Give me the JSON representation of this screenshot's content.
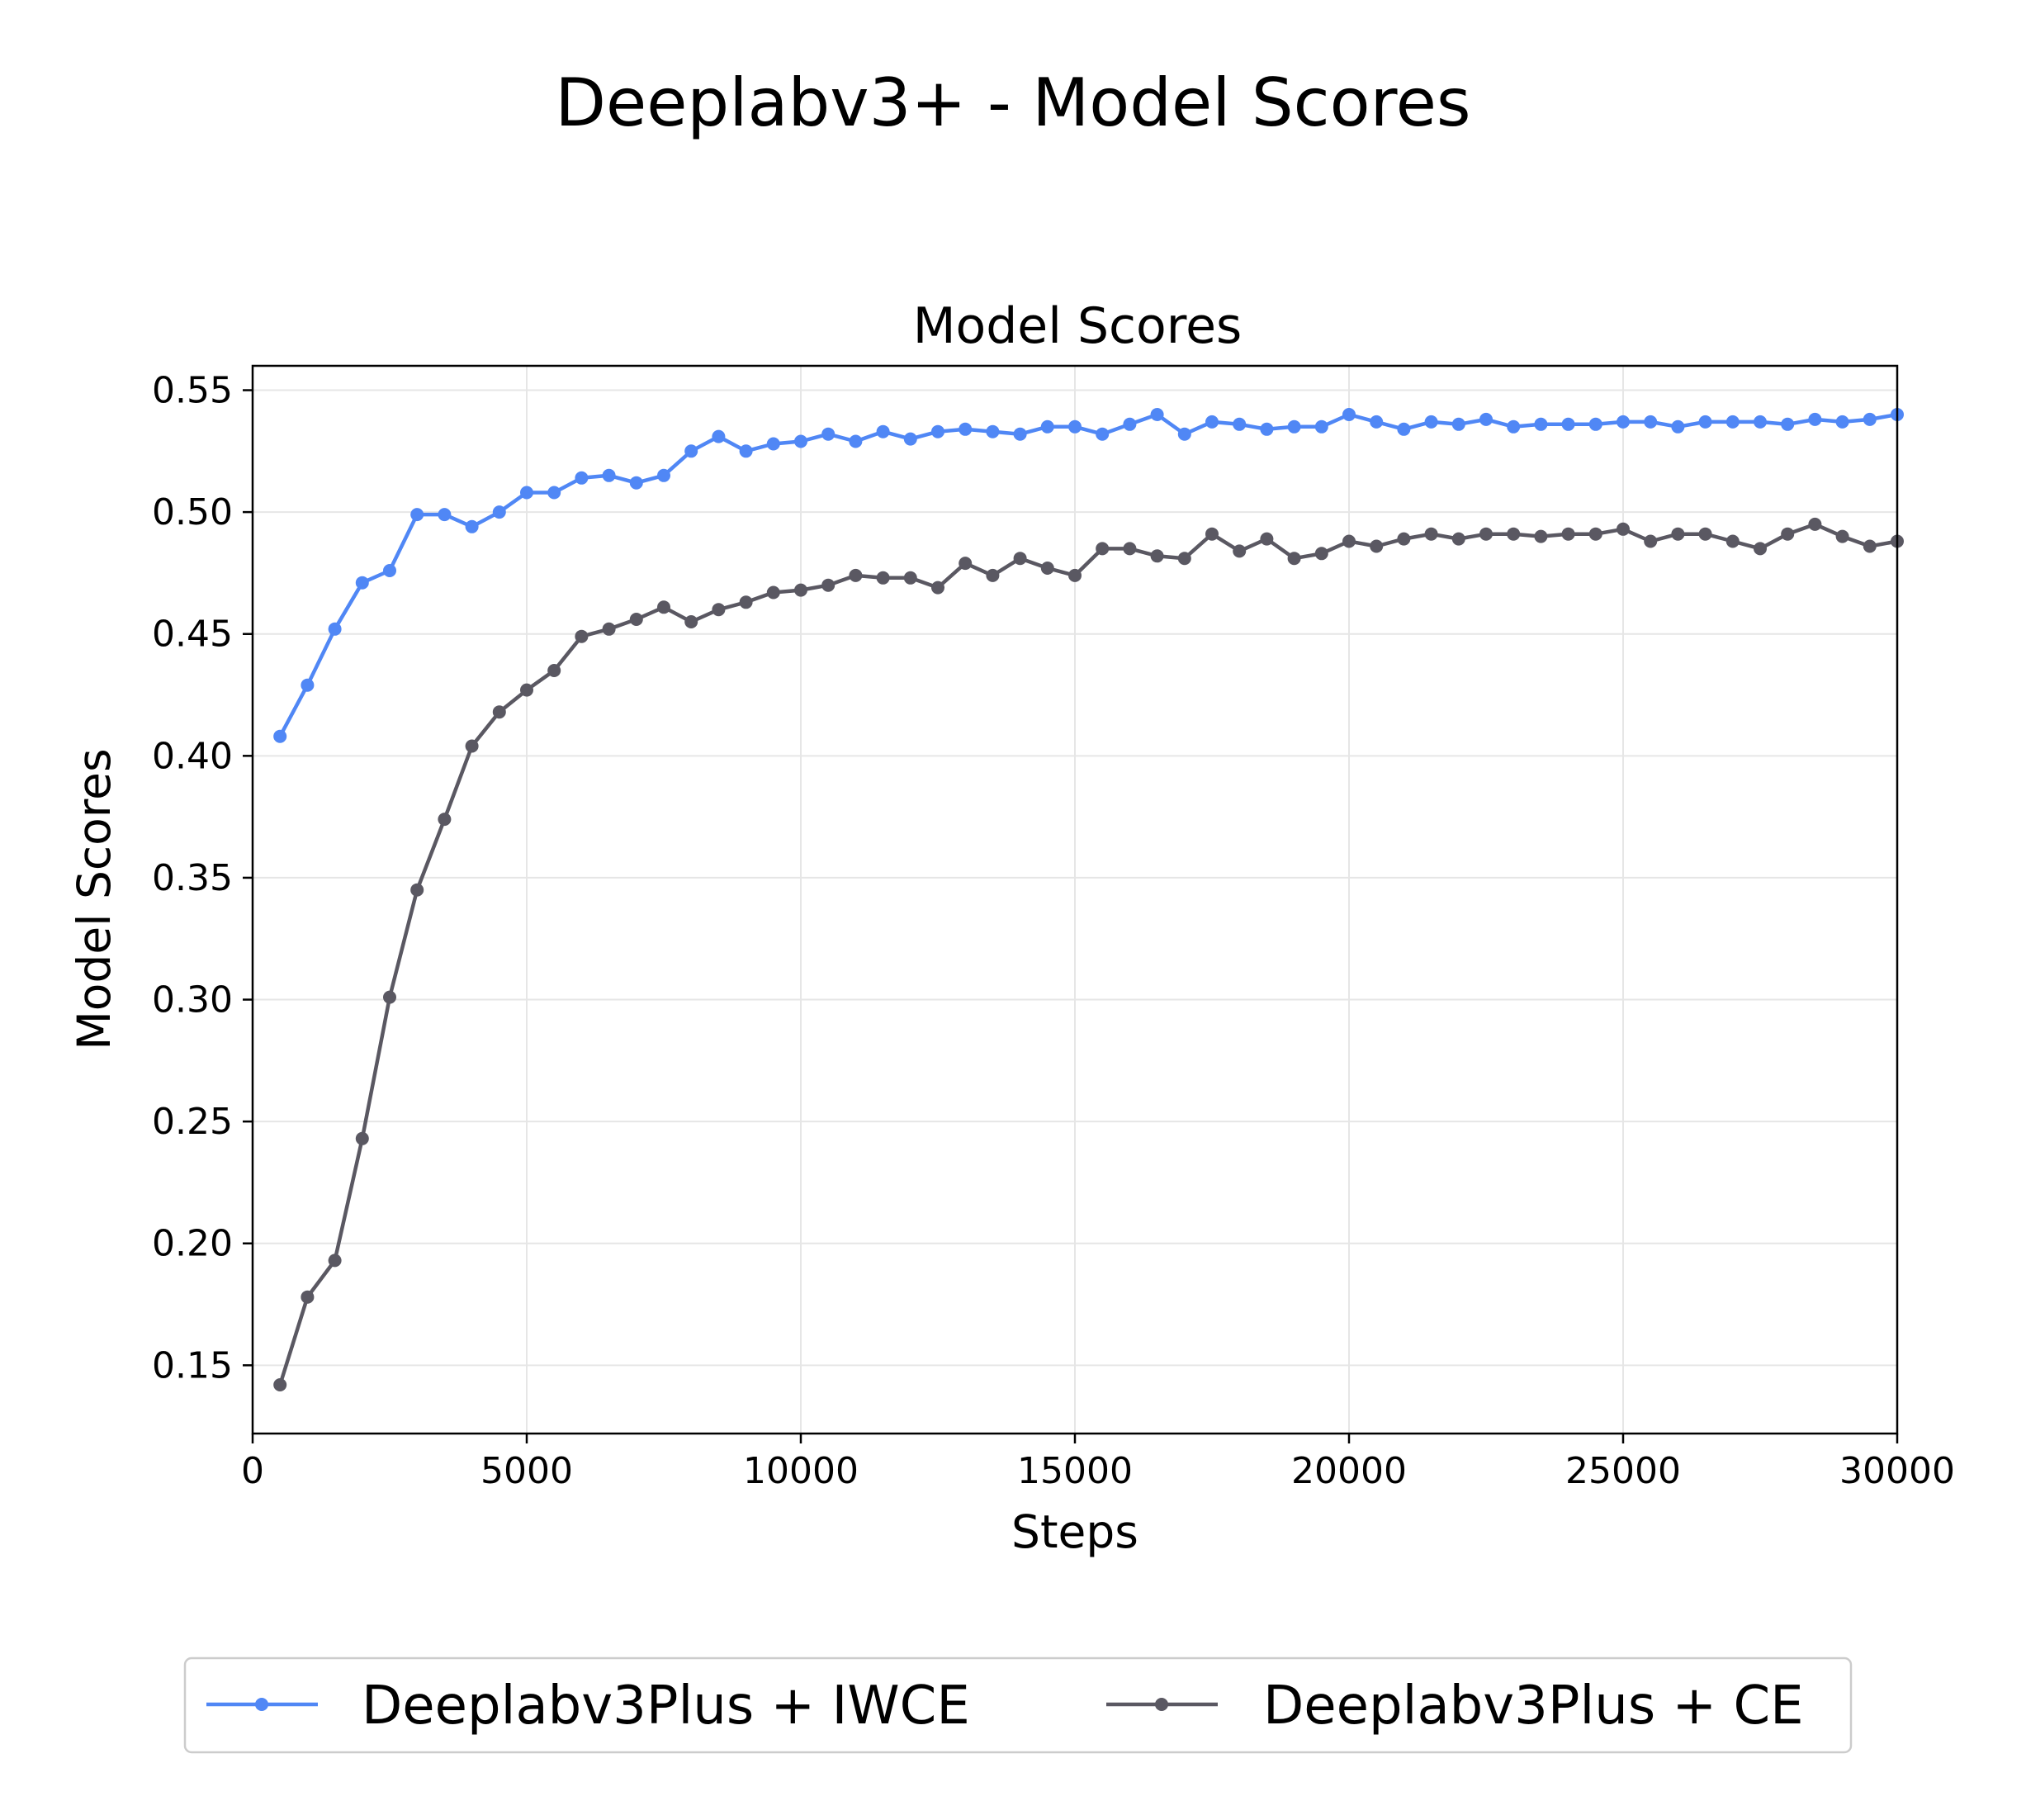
{
  "chart_data": {
    "type": "line",
    "suptitle": "Deeplabv3+ - Model Scores",
    "title": "Model Scores",
    "xlabel": "Steps",
    "ylabel": "Model Scores",
    "xlim": [
      0,
      30000
    ],
    "ylim": [
      0.122,
      0.56
    ],
    "xticks": [
      0,
      5000,
      10000,
      15000,
      20000,
      25000,
      30000
    ],
    "yticks": [
      0.15,
      0.2,
      0.25,
      0.3,
      0.35,
      0.4,
      0.45,
      0.5,
      0.55
    ],
    "xtick_labels": [
      "0",
      "5000",
      "10000",
      "15000",
      "20000",
      "25000",
      "30000"
    ],
    "ytick_labels": [
      "0.15",
      "0.20",
      "0.25",
      "0.30",
      "0.35",
      "0.40",
      "0.45",
      "0.50",
      "0.55"
    ],
    "grid": true,
    "legend_position": "bottom-center",
    "x": [
      500,
      1000,
      1500,
      2000,
      2500,
      3000,
      3500,
      4000,
      4500,
      5000,
      5500,
      6000,
      6500,
      7000,
      7500,
      8000,
      8500,
      9000,
      9500,
      10000,
      10500,
      11000,
      11500,
      12000,
      12500,
      13000,
      13500,
      14000,
      14500,
      15000,
      15500,
      16000,
      16500,
      17000,
      17500,
      18000,
      18500,
      19000,
      19500,
      20000,
      20500,
      21000,
      21500,
      22000,
      22500,
      23000,
      23500,
      24000,
      24500,
      25000,
      25500,
      26000,
      26500,
      27000,
      27500,
      28000,
      28500,
      29000,
      29500,
      30000
    ],
    "series": [
      {
        "name": "Deeplabv3Plus + IWCE",
        "color": "#5087f5",
        "values": [
          0.408,
          0.429,
          0.452,
          0.471,
          0.476,
          0.499,
          0.499,
          0.494,
          0.5,
          0.508,
          0.508,
          0.514,
          0.515,
          0.512,
          0.515,
          0.525,
          0.531,
          0.525,
          0.528,
          0.529,
          0.532,
          0.529,
          0.533,
          0.53,
          0.533,
          0.534,
          0.533,
          0.532,
          0.535,
          0.535,
          0.532,
          0.536,
          0.54,
          0.532,
          0.537,
          0.536,
          0.534,
          0.535,
          0.535,
          0.54,
          0.537,
          0.534,
          0.537,
          0.536,
          0.538,
          0.535,
          0.536,
          0.536,
          0.536,
          0.537,
          0.537,
          0.535,
          0.537,
          0.537,
          0.537,
          0.536,
          0.538,
          0.537,
          0.538,
          0.54
        ]
      },
      {
        "name": "Deeplabv3Plus + CE",
        "color": "#5a5862",
        "values": [
          0.142,
          0.178,
          0.193,
          0.243,
          0.301,
          0.345,
          0.374,
          0.404,
          0.418,
          0.427,
          0.435,
          0.449,
          0.452,
          0.456,
          0.461,
          0.455,
          0.46,
          0.463,
          0.467,
          0.468,
          0.47,
          0.474,
          0.473,
          0.473,
          0.469,
          0.479,
          0.474,
          0.481,
          0.477,
          0.474,
          0.485,
          0.485,
          0.482,
          0.481,
          0.491,
          0.484,
          0.489,
          0.481,
          0.483,
          0.488,
          0.486,
          0.489,
          0.491,
          0.489,
          0.491,
          0.491,
          0.49,
          0.491,
          0.491,
          0.493,
          0.488,
          0.491,
          0.491,
          0.488,
          0.485,
          0.491,
          0.495,
          0.49,
          0.486,
          0.488
        ]
      }
    ]
  }
}
